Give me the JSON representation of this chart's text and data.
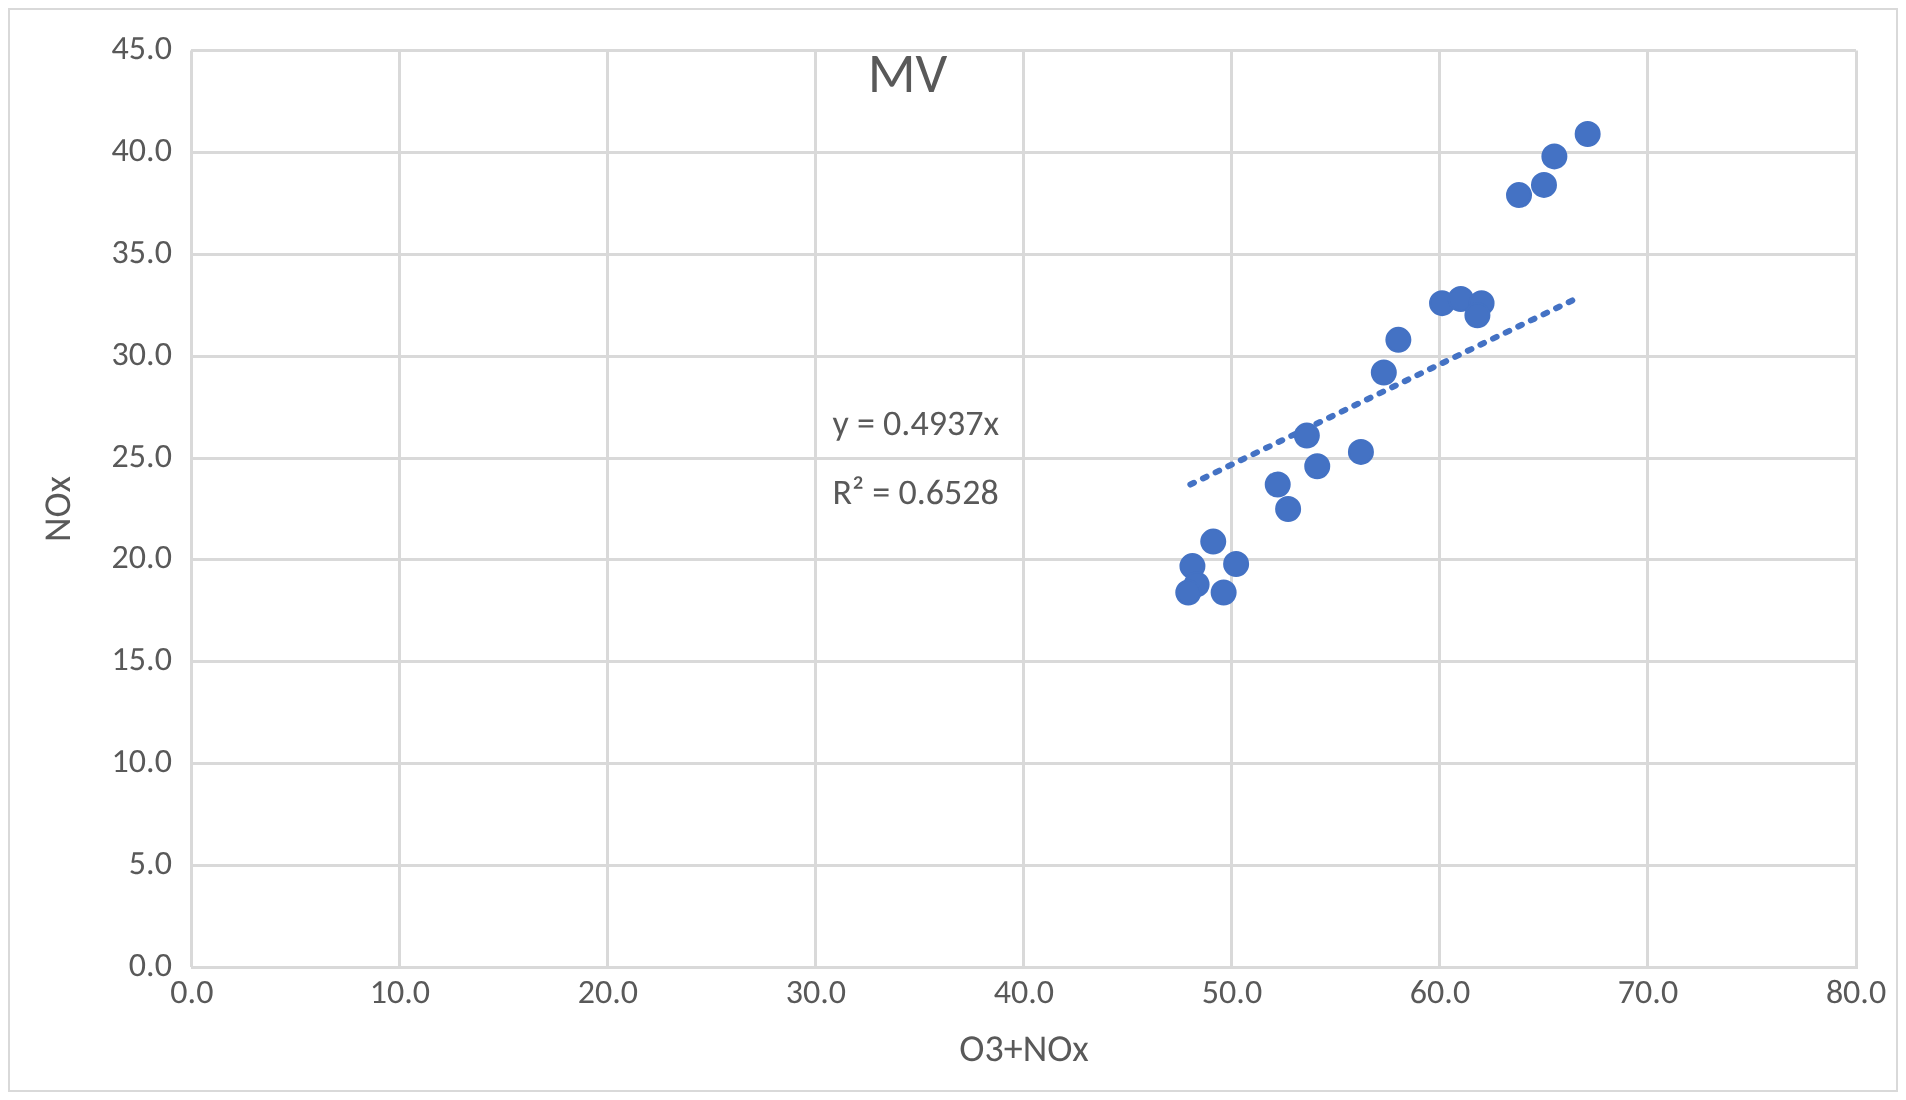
{
  "chart_data": {
    "type": "scatter",
    "title": "MV",
    "xlabel": "O3+NOx",
    "ylabel": "NOx",
    "xlim": [
      0,
      80
    ],
    "xticks": [
      {
        "value": 0,
        "label": "0.0"
      },
      {
        "value": 10,
        "label": "10.0"
      },
      {
        "value": 20,
        "label": "20.0"
      },
      {
        "value": 30,
        "label": "30.0"
      },
      {
        "value": 40,
        "label": "40.0"
      },
      {
        "value": 50,
        "label": "50.0"
      },
      {
        "value": 60,
        "label": "60.0"
      },
      {
        "value": 70,
        "label": "70.0"
      },
      {
        "value": 80,
        "label": "80.0"
      }
    ],
    "ylim": [
      0,
      45
    ],
    "yticks": [
      {
        "value": 0,
        "label": "0.0"
      },
      {
        "value": 5,
        "label": "5.0"
      },
      {
        "value": 10,
        "label": "10.0"
      },
      {
        "value": 15,
        "label": "15.0"
      },
      {
        "value": 20,
        "label": "20.0"
      },
      {
        "value": 25,
        "label": "25.0"
      },
      {
        "value": 30,
        "label": "30.0"
      },
      {
        "value": 35,
        "label": "35.0"
      },
      {
        "value": 40,
        "label": "40.0"
      },
      {
        "value": 45,
        "label": "45.0"
      }
    ],
    "grid": true,
    "marker": "circle",
    "series": [
      {
        "type": "scatter",
        "color": "#4472c4",
        "x": [
          67.1,
          65.5,
          65.0,
          63.8,
          60.1,
          61.0,
          62.0,
          61.8,
          58.0,
          57.3,
          53.6,
          54.1,
          56.2,
          52.2,
          52.7,
          49.1,
          50.2,
          48.1,
          48.3,
          47.9,
          49.6
        ],
        "values": [
          40.9,
          39.8,
          38.4,
          37.9,
          32.6,
          32.8,
          32.6,
          32.0,
          30.8,
          29.2,
          26.1,
          24.6,
          25.3,
          23.7,
          22.5,
          20.9,
          19.8,
          19.7,
          18.8,
          18.4,
          18.4
        ]
      },
      {
        "type": "line",
        "color": "#4472c4",
        "line_style": "dotted",
        "marker": "none",
        "x": [
          48.0,
          66.5
        ],
        "values": [
          23.7,
          32.8
        ]
      }
    ],
    "annotations": [
      "y = 0.4937x",
      "R² = 0.6528"
    ]
  }
}
